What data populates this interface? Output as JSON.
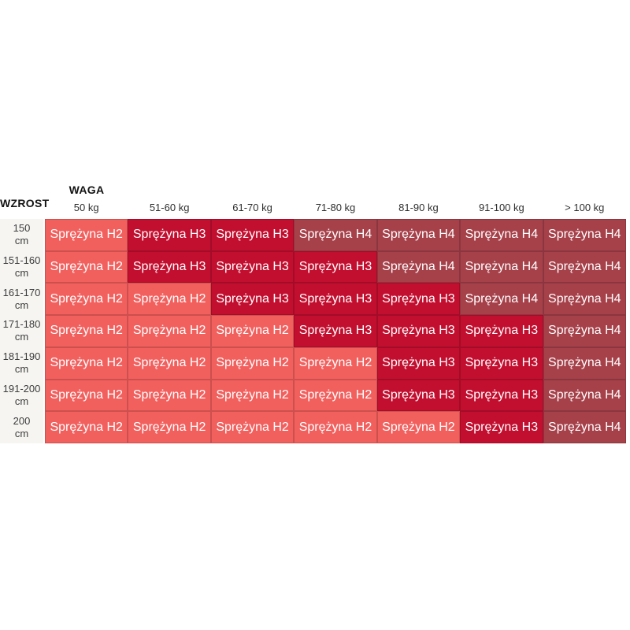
{
  "page": {
    "background": "#ffffff"
  },
  "chart_data": {
    "type": "heatmap",
    "title": "",
    "x_axis_label": "WAGA",
    "y_axis_label": "WZROST",
    "x_categories": [
      "50 kg",
      "51-60 kg",
      "61-70 kg",
      "71-80 kg",
      "81-90 kg",
      "91-100 kg",
      "> 100 kg"
    ],
    "y_categories": [
      "150 cm",
      "151-160 cm",
      "161-170 cm",
      "171-180 cm",
      "181-190 cm",
      "191-200 cm",
      "200 cm"
    ],
    "values": [
      [
        "Sprężyna H2",
        "Sprężyna H3",
        "Sprężyna H3",
        "Sprężyna H4",
        "Sprężyna H4",
        "Sprężyna H4",
        "Sprężyna H4"
      ],
      [
        "Sprężyna H2",
        "Sprężyna H3",
        "Sprężyna H3",
        "Sprężyna H3",
        "Sprężyna H4",
        "Sprężyna H4",
        "Sprężyna H4"
      ],
      [
        "Sprężyna H2",
        "Sprężyna H2",
        "Sprężyna H3",
        "Sprężyna H3",
        "Sprężyna H3",
        "Sprężyna H4",
        "Sprężyna H4"
      ],
      [
        "Sprężyna H2",
        "Sprężyna H2",
        "Sprężyna H2",
        "Sprężyna H3",
        "Sprężyna H3",
        "Sprężyna H3",
        "Sprężyna H4"
      ],
      [
        "Sprężyna H2",
        "Sprężyna H2",
        "Sprężyna H2",
        "Sprężyna H2",
        "Sprężyna H3",
        "Sprężyna H3",
        "Sprężyna H4"
      ],
      [
        "Sprężyna H2",
        "Sprężyna H2",
        "Sprężyna H2",
        "Sprężyna H2",
        "Sprężyna H3",
        "Sprężyna H3",
        "Sprężyna H4"
      ],
      [
        "Sprężyna H2",
        "Sprężyna H2",
        "Sprężyna H2",
        "Sprężyna H2",
        "Sprężyna H2",
        "Sprężyna H3",
        "Sprężyna H4"
      ]
    ],
    "color_map": {
      "Sprężyna H2": "#f2605e",
      "Sprężyna H3": "#c30f2f",
      "Sprężyna H4": "#a6414a"
    },
    "legend_position": "none",
    "grid": true
  }
}
